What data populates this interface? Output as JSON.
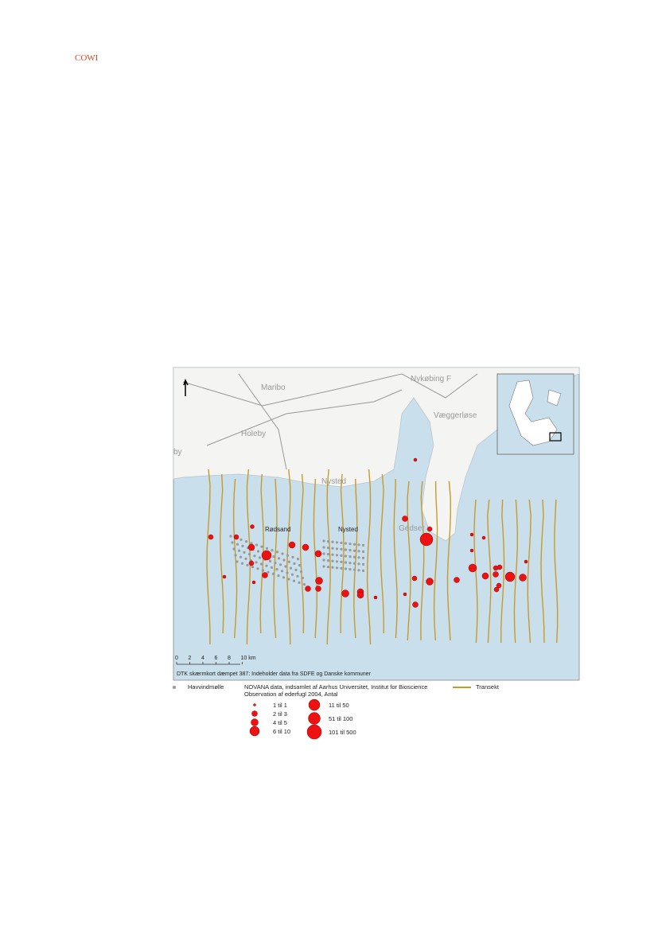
{
  "header": {
    "logo": "COWI"
  },
  "map": {
    "places": [
      "Maribo",
      "Nykøbing F",
      "Væggerløse",
      "Holeby",
      "by",
      "Nysted",
      "Rødsand",
      "Nysted",
      "Gedser"
    ],
    "scale": [
      "0",
      "2",
      "4",
      "6",
      "8",
      "10 km"
    ],
    "credit": "DTK skærmkort dæmpet 387: Indeholder data fra SDFE og Danske kommuner"
  },
  "legend": {
    "wind_turbine": "Havvindmølle",
    "source": "NOVANA data, indsamlet af Aarhus Universitet, Institut for Bioscience",
    "observation": "Observation af ederfugl 2004, Antal",
    "classes": [
      "1 til 1",
      "2 til 3",
      "4 til 5",
      "6 til 10",
      "11 til 50",
      "51 til 100",
      "101 til 500"
    ],
    "transect": "Transekt"
  }
}
